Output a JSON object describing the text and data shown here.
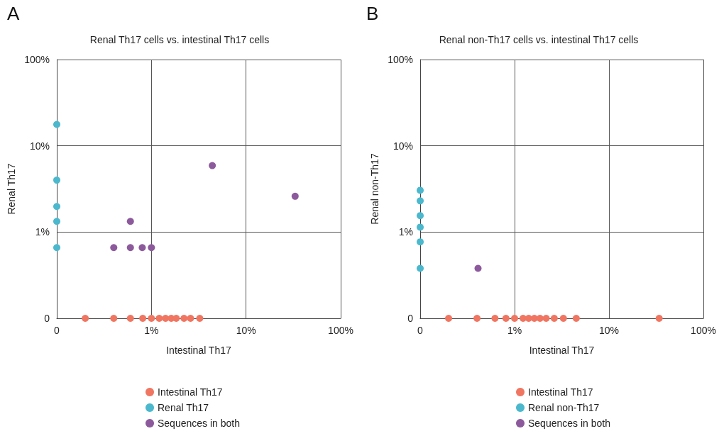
{
  "chart_data": [
    {
      "type": "scatter",
      "title": "Renal Th17 cells vs. intestinal Th17 cells",
      "xlabel": "Intestinal Th17",
      "ylabel": "Renal Th17",
      "annotations": [
        "A"
      ],
      "log": "xy",
      "grid": true,
      "legend": "bottom",
      "marker": "circle",
      "xlim": [
        0.1,
        100
      ],
      "ylim": [
        0.1,
        100
      ],
      "xticks": [
        {
          "value": 0.1,
          "label": "0"
        },
        {
          "value": 1,
          "label": "1%"
        },
        {
          "value": 10,
          "label": "10%"
        },
        {
          "value": 100,
          "label": "100%"
        }
      ],
      "yticks": [
        {
          "value": 0.1,
          "label": "0"
        },
        {
          "value": 1,
          "label": "1%"
        },
        {
          "value": 10,
          "label": "10%"
        },
        {
          "value": 100,
          "label": "100%"
        }
      ],
      "series": [
        {
          "name": "Intestinal Th17",
          "color": "#f07662",
          "x": [
            0.2,
            0.4,
            0.6,
            0.81,
            1.0,
            1.21,
            1.41,
            1.62,
            1.83,
            2.21,
            2.59,
            3.24
          ],
          "values": [
            0.1,
            0.1,
            0.1,
            0.1,
            0.1,
            0.1,
            0.1,
            0.1,
            0.1,
            0.1,
            0.1,
            0.1
          ]
        },
        {
          "name": "Renal Th17",
          "color": "#4bb8cd",
          "x": [
            0.1,
            0.1,
            0.1,
            0.1,
            0.1
          ],
          "values": [
            17.7,
            4.0,
            1.98,
            1.33,
            0.66
          ]
        },
        {
          "name": "Sequences in both",
          "color": "#8c5a9c",
          "x": [
            0.4,
            0.6,
            0.6,
            0.8,
            1.0,
            4.4,
            33
          ],
          "values": [
            0.66,
            1.33,
            0.66,
            0.66,
            0.66,
            5.9,
            2.6
          ]
        }
      ]
    },
    {
      "type": "scatter",
      "title": "Renal non-Th17 cells vs. intestinal Th17 cells",
      "xlabel": "Intestinal Th17",
      "ylabel": "Renal non-Th17",
      "annotations": [
        "B"
      ],
      "log": "xy",
      "grid": true,
      "legend": "bottom",
      "marker": "circle",
      "xlim": [
        0.1,
        100
      ],
      "ylim": [
        0.1,
        100
      ],
      "xticks": [
        {
          "value": 0.1,
          "label": "0"
        },
        {
          "value": 1,
          "label": "1%"
        },
        {
          "value": 10,
          "label": "10%"
        },
        {
          "value": 100,
          "label": "100%"
        }
      ],
      "yticks": [
        {
          "value": 0.1,
          "label": "0"
        },
        {
          "value": 1,
          "label": "1%"
        },
        {
          "value": 10,
          "label": "10%"
        },
        {
          "value": 100,
          "label": "100%"
        }
      ],
      "series": [
        {
          "name": "Intestinal Th17",
          "color": "#f07662",
          "x": [
            0.2,
            0.4,
            0.62,
            0.81,
            1.0,
            1.23,
            1.41,
            1.62,
            1.86,
            2.16,
            2.63,
            3.29,
            4.5,
            34
          ],
          "values": [
            0.1,
            0.1,
            0.1,
            0.1,
            0.1,
            0.1,
            0.1,
            0.1,
            0.1,
            0.1,
            0.1,
            0.1,
            0.1,
            0.1
          ]
        },
        {
          "name": "Renal non-Th17",
          "color": "#4bb8cd",
          "x": [
            0.1,
            0.1,
            0.1,
            0.1,
            0.1,
            0.1
          ],
          "values": [
            3.05,
            2.3,
            1.55,
            1.14,
            0.77,
            0.38
          ]
        },
        {
          "name": "Sequences in both",
          "color": "#8c5a9c",
          "x": [
            0.41
          ],
          "values": [
            0.38
          ]
        }
      ]
    }
  ]
}
